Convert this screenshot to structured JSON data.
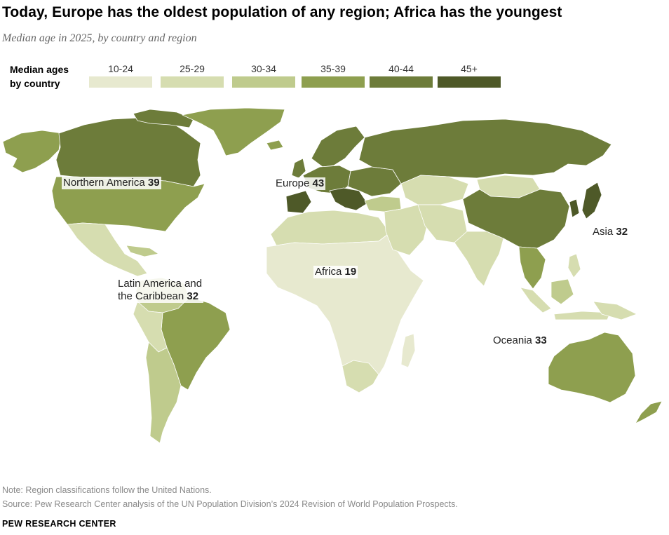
{
  "title": "Today, Europe has the oldest population of any region; Africa has the youngest",
  "subtitle": "Median age in 2025, by country and region",
  "legend": {
    "title_line1": "Median ages",
    "title_line2": "by country",
    "bins": [
      {
        "label": "10-24",
        "color": "#e7e9cf"
      },
      {
        "label": "25-29",
        "color": "#d6ddb0"
      },
      {
        "label": "30-34",
        "color": "#bfcb8d"
      },
      {
        "label": "35-39",
        "color": "#8e9f4f"
      },
      {
        "label": "40-44",
        "color": "#6d7c3a"
      },
      {
        "label": "45+",
        "color": "#4e5928"
      }
    ]
  },
  "regions": [
    {
      "name": "Northern America",
      "value": "39",
      "bin": "35-39"
    },
    {
      "name": "Europe",
      "value": "43",
      "bin": "40-44"
    },
    {
      "name": "Asia",
      "value": "32",
      "bin": "30-34"
    },
    {
      "name": "Africa",
      "value": "19",
      "bin": "10-24"
    },
    {
      "name_line1": "Latin America and",
      "name_line2": "the Caribbean",
      "value": "32",
      "bin": "30-34"
    },
    {
      "name": "Oceania",
      "value": "33",
      "bin": "30-34"
    }
  ],
  "note": "Note: Region classifications follow the United Nations.",
  "source": "Source: Pew Research Center analysis of the UN Population Division’s 2024 Revision of World Population Prospects.",
  "brand": "PEW RESEARCH CENTER"
}
